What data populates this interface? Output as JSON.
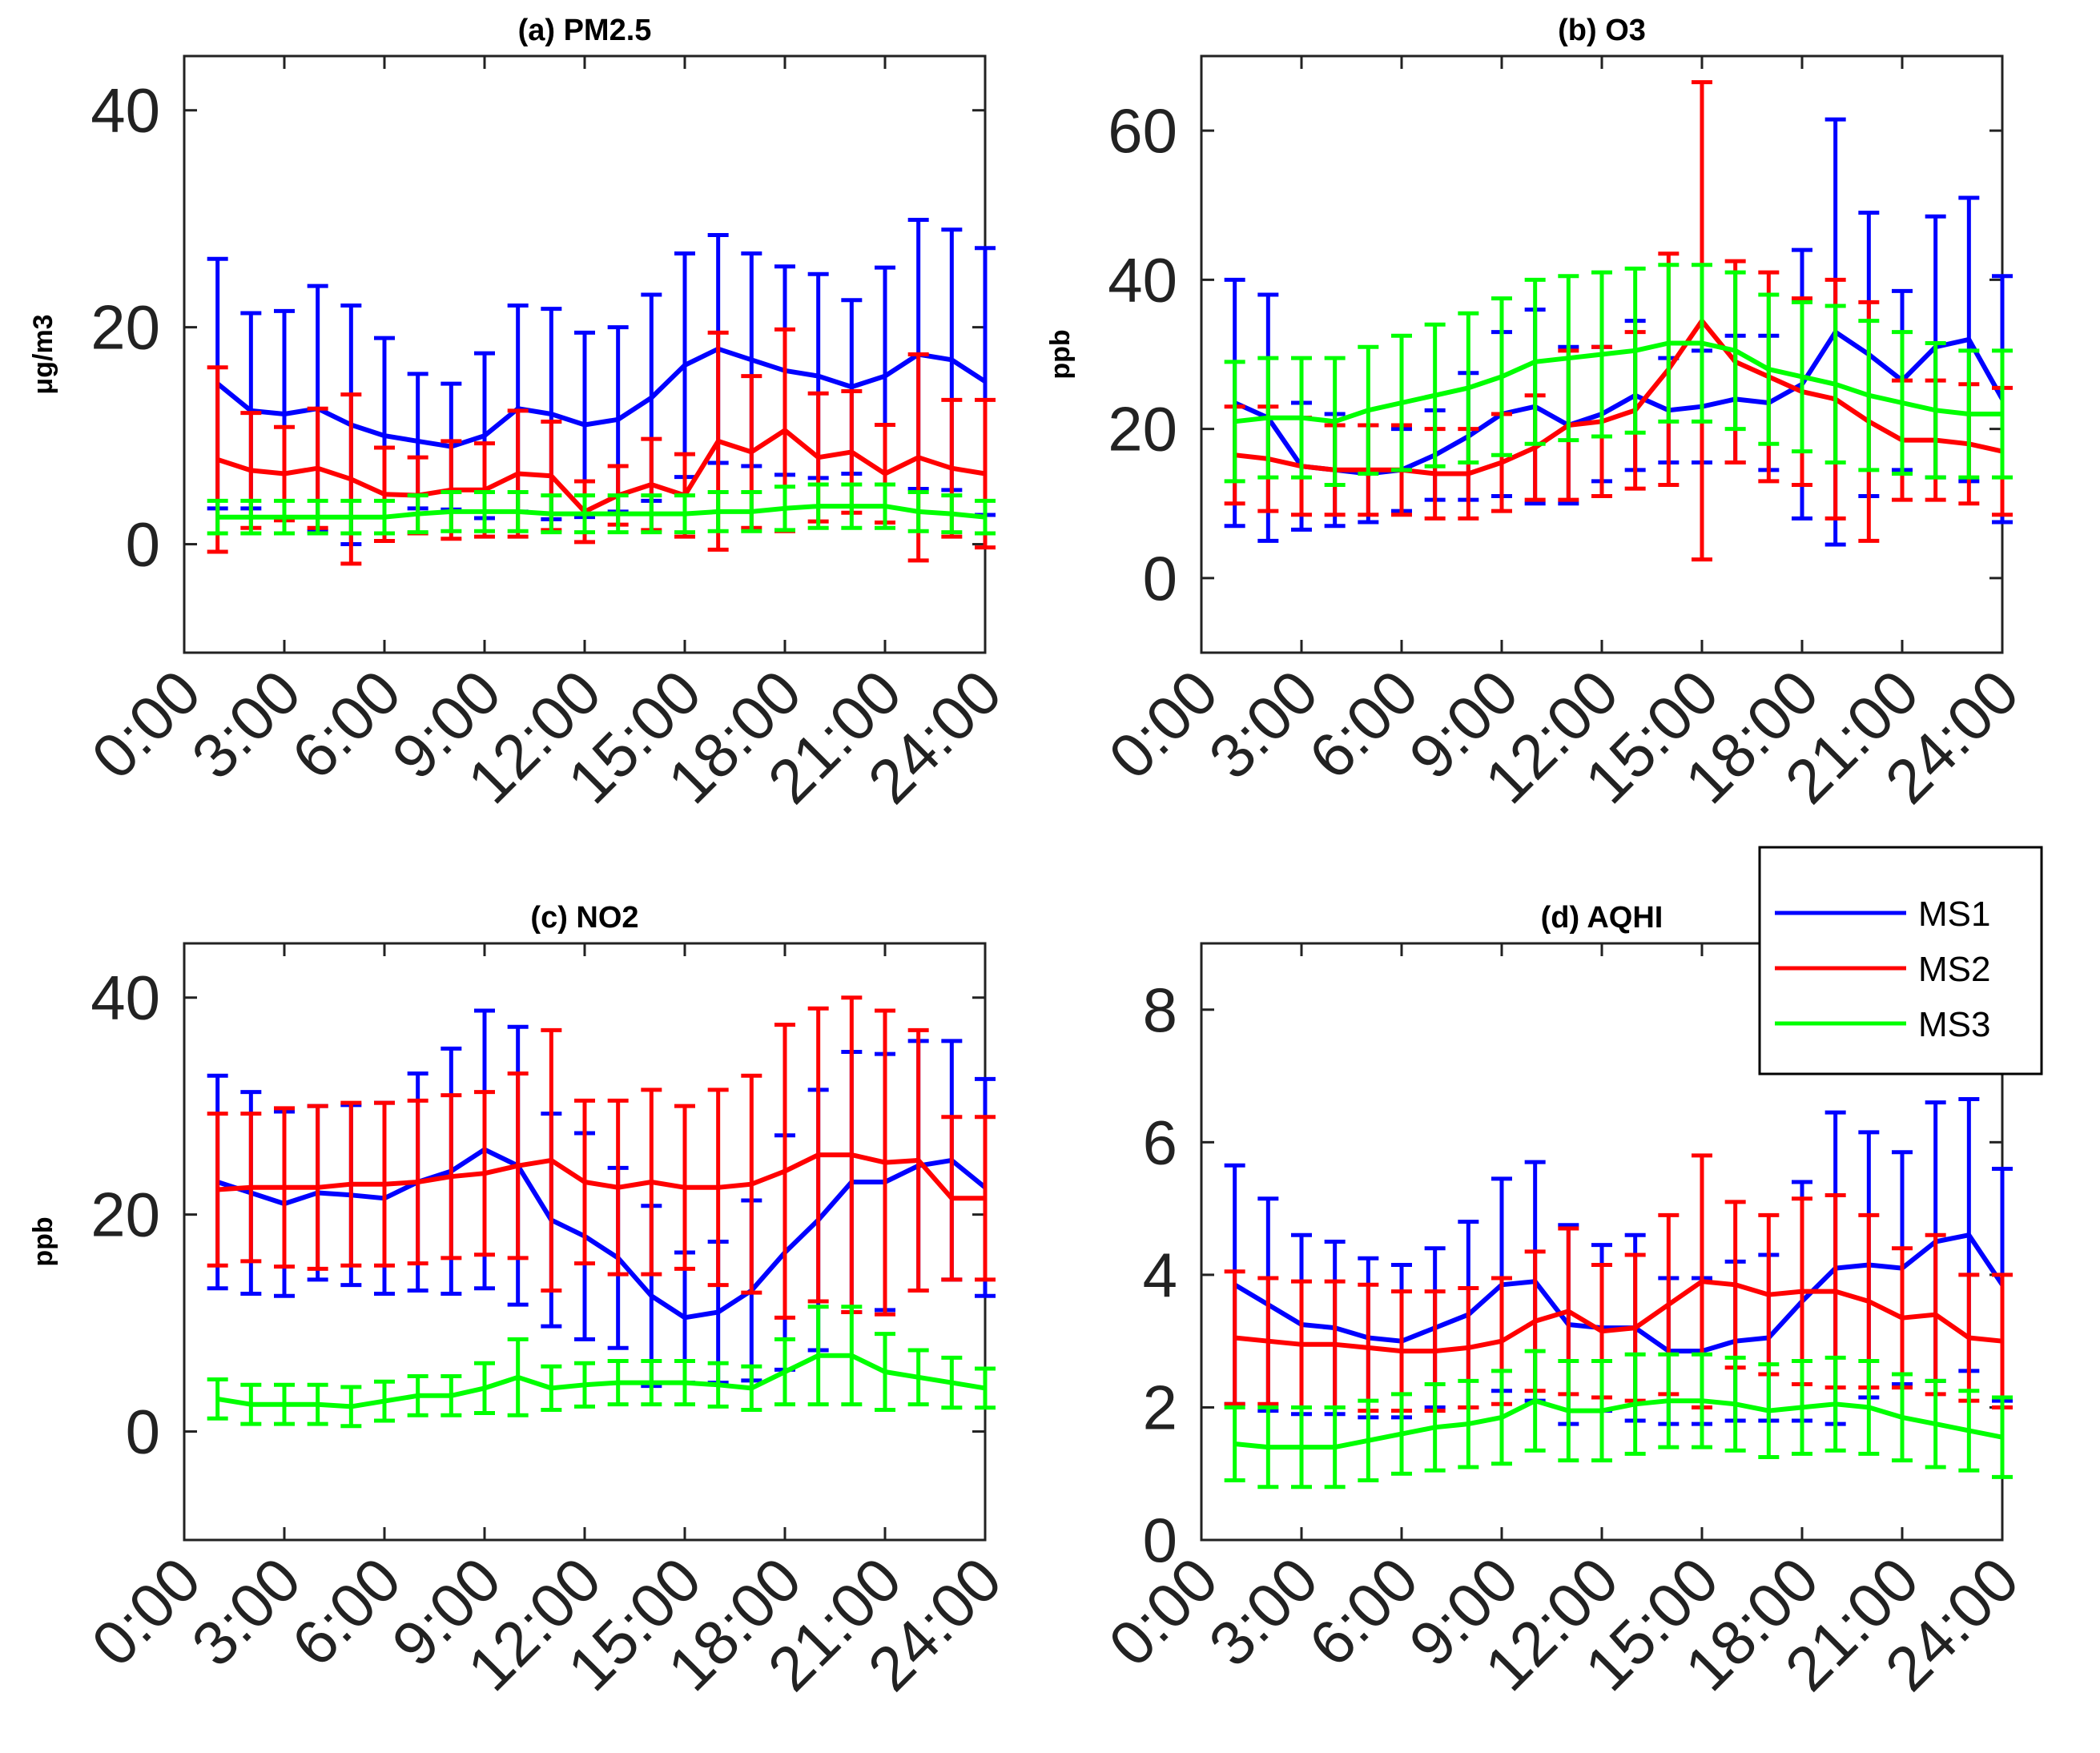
{
  "colors": {
    "MS1": "#0000ff",
    "MS2": "#ff0000",
    "MS3": "#00ff00"
  },
  "legend": {
    "placement": "right-middle",
    "entries": [
      "MS1",
      "MS2",
      "MS3"
    ]
  },
  "chart_data": [
    {
      "type": "line",
      "title": "(a)  PM2.5",
      "ylabel": "μg/m3",
      "ylim": [
        -10,
        45
      ],
      "yticks": [
        0,
        20,
        40
      ],
      "xlim": [
        0,
        24
      ],
      "xticks": [
        "0:00",
        "3:00",
        "6:00",
        "9:00",
        "12:00",
        "15:00",
        "18:00",
        "21:00",
        "24:00"
      ],
      "x": [
        1,
        2,
        3,
        4,
        5,
        6,
        7,
        8,
        9,
        10,
        11,
        12,
        13,
        14,
        15,
        16,
        17,
        18,
        19,
        20,
        21,
        22,
        23,
        24
      ],
      "series": [
        {
          "name": "MS1",
          "values": [
            14.8,
            12.3,
            12.0,
            12.5,
            11.0,
            10.0,
            9.5,
            9.0,
            10.0,
            12.5,
            12.0,
            11.0,
            11.5,
            13.5,
            16.5,
            18.0,
            17.0,
            16.0,
            15.5,
            14.5,
            15.5,
            17.5,
            17.0,
            15.0
          ],
          "err": [
            11.5,
            9.0,
            9.5,
            11.3,
            11.0,
            9.0,
            6.2,
            5.8,
            7.6,
            9.5,
            9.7,
            8.5,
            8.5,
            9.5,
            10.3,
            10.5,
            9.8,
            9.6,
            9.4,
            8.0,
            10.0,
            12.4,
            12.0,
            12.3
          ]
        },
        {
          "name": "MS2",
          "values": [
            7.8,
            6.8,
            6.5,
            7.0,
            6.0,
            4.6,
            4.5,
            5.0,
            5.0,
            6.5,
            6.3,
            3.0,
            4.5,
            5.5,
            4.5,
            9.5,
            8.5,
            10.5,
            8.0,
            8.5,
            6.5,
            8.0,
            7.0,
            6.5
          ],
          "err": [
            8.5,
            5.3,
            4.3,
            5.5,
            7.8,
            4.3,
            3.5,
            4.5,
            4.3,
            5.8,
            5.0,
            2.8,
            2.7,
            4.2,
            3.8,
            10.0,
            7.0,
            9.3,
            5.9,
            5.6,
            4.5,
            9.5,
            6.3,
            6.8
          ]
        },
        {
          "name": "MS3",
          "values": [
            2.5,
            2.5,
            2.5,
            2.5,
            2.5,
            2.5,
            2.8,
            3.0,
            3.0,
            3.0,
            2.8,
            2.8,
            2.8,
            2.8,
            2.8,
            3.0,
            3.0,
            3.3,
            3.5,
            3.5,
            3.5,
            3.0,
            2.8,
            2.5
          ],
          "err": [
            1.5,
            1.5,
            1.5,
            1.5,
            1.5,
            1.5,
            1.7,
            1.8,
            1.8,
            1.8,
            1.7,
            1.7,
            1.7,
            1.7,
            1.7,
            1.8,
            1.8,
            2.0,
            2.0,
            2.0,
            2.0,
            1.8,
            1.7,
            1.5
          ]
        }
      ]
    },
    {
      "type": "line",
      "title": "(b)  O3",
      "ylabel": "ppb",
      "ylim": [
        -10,
        70
      ],
      "yticks": [
        0,
        20,
        40,
        60
      ],
      "xlim": [
        0,
        24
      ],
      "xticks": [
        "0:00",
        "3:00",
        "6:00",
        "9:00",
        "12:00",
        "15:00",
        "18:00",
        "21:00",
        "24:00"
      ],
      "x": [
        1,
        2,
        3,
        4,
        5,
        6,
        7,
        8,
        9,
        10,
        11,
        12,
        13,
        14,
        15,
        16,
        17,
        18,
        19,
        20,
        21,
        22,
        23,
        24
      ],
      "series": [
        {
          "name": "MS1",
          "values": [
            23.5,
            21.5,
            15.0,
            14.5,
            14.0,
            14.5,
            16.5,
            19.0,
            22.0,
            23.0,
            20.5,
            22.0,
            24.5,
            22.5,
            23.0,
            24.0,
            23.5,
            26.0,
            33.0,
            30.0,
            26.5,
            31.0,
            32.0,
            24.0
          ],
          "err": [
            16.5,
            16.5,
            8.5,
            7.5,
            6.5,
            5.5,
            6.0,
            8.5,
            11.0,
            13.0,
            10.5,
            9.0,
            10.0,
            7.0,
            7.5,
            8.5,
            9.0,
            18.0,
            28.5,
            19.0,
            12.0,
            17.5,
            19.0,
            16.5
          ]
        },
        {
          "name": "MS2",
          "values": [
            16.5,
            16.0,
            15.0,
            14.5,
            14.5,
            14.5,
            14.0,
            14.0,
            15.5,
            17.5,
            20.5,
            21.0,
            22.5,
            28.0,
            34.5,
            29.0,
            27.0,
            25.0,
            24.0,
            21.0,
            18.5,
            18.5,
            18.0,
            17.0
          ],
          "err": [
            6.5,
            7.0,
            6.5,
            6.0,
            6.0,
            6.0,
            6.0,
            6.0,
            6.5,
            7.0,
            10.0,
            10.0,
            10.5,
            15.5,
            32.0,
            13.5,
            14.0,
            12.5,
            16.0,
            16.0,
            8.0,
            8.0,
            8.0,
            8.5
          ]
        },
        {
          "name": "MS3",
          "values": [
            21.0,
            21.5,
            21.5,
            21.0,
            22.5,
            23.5,
            24.5,
            25.5,
            27.0,
            29.0,
            29.5,
            30.0,
            30.5,
            31.5,
            31.5,
            30.5,
            28.0,
            27.0,
            26.0,
            24.5,
            23.5,
            22.5,
            22.0,
            22.0
          ],
          "err": [
            8.0,
            8.0,
            8.0,
            8.5,
            8.5,
            9.0,
            9.5,
            10.0,
            10.5,
            11.0,
            11.0,
            11.0,
            11.0,
            10.5,
            10.5,
            10.5,
            10.0,
            10.0,
            10.5,
            10.0,
            9.5,
            9.0,
            8.5,
            8.5
          ]
        }
      ]
    },
    {
      "type": "line",
      "title": "(c)  NO2",
      "ylabel": "ppb",
      "ylim": [
        -10,
        45
      ],
      "yticks": [
        0,
        20,
        40
      ],
      "xlim": [
        0,
        24
      ],
      "xticks": [
        "0:00",
        "3:00",
        "6:00",
        "9:00",
        "12:00",
        "15:00",
        "18:00",
        "21:00",
        "24:00"
      ],
      "x": [
        1,
        2,
        3,
        4,
        5,
        6,
        7,
        8,
        9,
        10,
        11,
        12,
        13,
        14,
        15,
        16,
        17,
        18,
        19,
        20,
        21,
        22,
        23,
        24
      ],
      "series": [
        {
          "name": "MS1",
          "values": [
            23.0,
            22.0,
            21.0,
            22.0,
            21.8,
            21.5,
            23.0,
            24.0,
            26.0,
            24.5,
            19.5,
            18.0,
            16.0,
            12.5,
            10.5,
            11.0,
            13.0,
            16.5,
            19.5,
            23.0,
            23.0,
            24.5,
            25.0,
            22.5
          ],
          "err": [
            9.8,
            9.3,
            8.5,
            8.0,
            8.3,
            8.8,
            10.0,
            11.3,
            12.8,
            12.8,
            9.8,
            9.5,
            8.3,
            8.3,
            6.0,
            6.5,
            8.3,
            10.8,
            12.0,
            12.0,
            11.8,
            11.5,
            11.0,
            10.0
          ]
        },
        {
          "name": "MS2",
          "values": [
            22.3,
            22.5,
            22.5,
            22.5,
            22.8,
            22.8,
            23.0,
            23.5,
            23.8,
            24.5,
            25.0,
            23.0,
            22.5,
            23.0,
            22.5,
            22.5,
            22.8,
            24.0,
            25.5,
            25.5,
            24.8,
            25.0,
            21.5,
            21.5
          ],
          "err": [
            7.0,
            6.8,
            7.3,
            7.5,
            7.5,
            7.5,
            7.5,
            7.5,
            7.5,
            8.5,
            12.0,
            7.5,
            8.0,
            8.5,
            7.5,
            9.0,
            10.0,
            13.5,
            13.5,
            14.5,
            14.0,
            12.0,
            7.5,
            7.5
          ]
        },
        {
          "name": "MS3",
          "values": [
            3.0,
            2.5,
            2.5,
            2.5,
            2.3,
            2.8,
            3.3,
            3.3,
            4.0,
            5.0,
            4.0,
            4.3,
            4.5,
            4.5,
            4.5,
            4.3,
            4.0,
            5.5,
            7.0,
            7.0,
            5.5,
            5.0,
            4.5,
            4.0
          ],
          "err": [
            1.8,
            1.8,
            1.8,
            1.8,
            1.8,
            1.8,
            1.8,
            1.8,
            2.3,
            3.5,
            2.0,
            2.0,
            2.0,
            2.0,
            2.0,
            2.0,
            2.0,
            3.0,
            4.5,
            4.5,
            3.5,
            2.5,
            2.3,
            1.8
          ]
        }
      ]
    },
    {
      "type": "line",
      "title": "(d)  AQHI",
      "ylabel": "",
      "ylim": [
        0,
        9
      ],
      "yticks": [
        0,
        2,
        4,
        6,
        8
      ],
      "xlim": [
        0,
        24
      ],
      "xticks": [
        "0:00",
        "3:00",
        "6:00",
        "9:00",
        "12:00",
        "15:00",
        "18:00",
        "21:00",
        "24:00"
      ],
      "x": [
        1,
        2,
        3,
        4,
        5,
        6,
        7,
        8,
        9,
        10,
        11,
        12,
        13,
        14,
        15,
        16,
        17,
        18,
        19,
        20,
        21,
        22,
        23,
        24
      ],
      "series": [
        {
          "name": "MS1",
          "values": [
            3.85,
            3.55,
            3.25,
            3.2,
            3.05,
            3.0,
            3.2,
            3.4,
            3.85,
            3.9,
            3.25,
            3.2,
            3.2,
            2.85,
            2.85,
            3.0,
            3.05,
            3.6,
            4.1,
            4.15,
            4.1,
            4.5,
            4.6,
            3.85
          ],
          "err": [
            1.8,
            1.6,
            1.35,
            1.3,
            1.2,
            1.15,
            1.2,
            1.4,
            1.6,
            1.8,
            1.5,
            1.25,
            1.4,
            1.1,
            1.1,
            1.2,
            1.25,
            1.8,
            2.35,
            2.0,
            1.75,
            2.1,
            2.05,
            1.75
          ]
        },
        {
          "name": "MS2",
          "values": [
            3.05,
            3.0,
            2.95,
            2.95,
            2.9,
            2.85,
            2.85,
            2.9,
            3.0,
            3.3,
            3.45,
            3.15,
            3.2,
            3.55,
            3.9,
            3.85,
            3.7,
            3.75,
            3.75,
            3.6,
            3.35,
            3.4,
            3.05,
            3.0
          ],
          "err": [
            1.0,
            0.95,
            0.95,
            0.95,
            0.95,
            0.9,
            0.9,
            0.9,
            0.95,
            1.05,
            1.25,
            1.0,
            1.1,
            1.35,
            1.9,
            1.25,
            1.2,
            1.4,
            1.45,
            1.3,
            1.05,
            1.2,
            0.95,
            1.0
          ]
        },
        {
          "name": "MS3",
          "values": [
            1.45,
            1.4,
            1.4,
            1.4,
            1.5,
            1.6,
            1.7,
            1.75,
            1.85,
            2.1,
            1.95,
            1.95,
            2.05,
            2.1,
            2.1,
            2.05,
            1.95,
            2.0,
            2.05,
            2.0,
            1.85,
            1.75,
            1.65,
            1.55
          ],
          "err": [
            0.55,
            0.6,
            0.6,
            0.6,
            0.6,
            0.6,
            0.65,
            0.65,
            0.7,
            0.75,
            0.75,
            0.75,
            0.75,
            0.7,
            0.7,
            0.7,
            0.7,
            0.7,
            0.7,
            0.7,
            0.65,
            0.65,
            0.6,
            0.6
          ]
        }
      ]
    }
  ]
}
